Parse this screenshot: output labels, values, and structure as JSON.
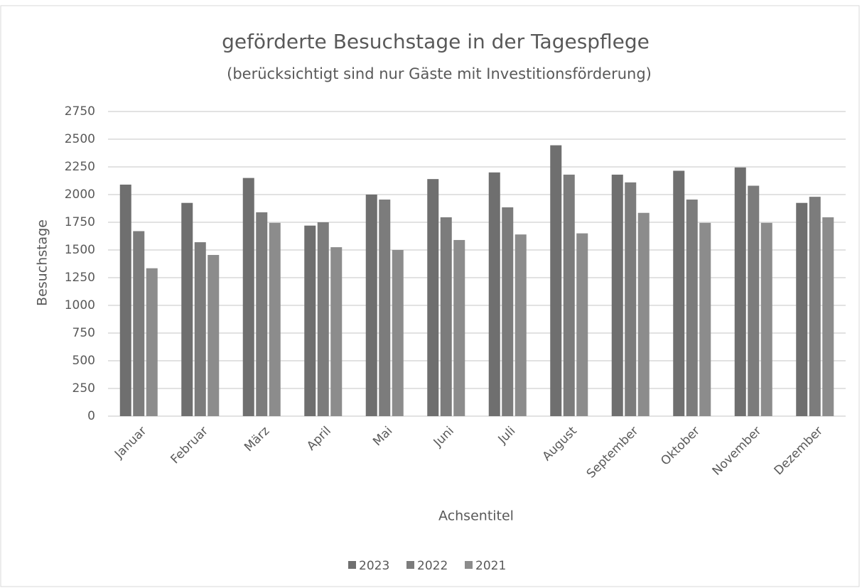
{
  "chart_data": {
    "type": "bar",
    "title": "geförderte Besuchstage in der Tagespflege",
    "subtitle": "(berücksichtigt sind nur Gäste mit Investitionsförderung)",
    "y_label": "Besuchstage",
    "x_label": "Achsentitel",
    "categories": [
      "Januar",
      "Februar",
      "März",
      "April",
      "Mai",
      "Juni",
      "Juli",
      "August",
      "September",
      "Oktober",
      "November",
      "Dezember"
    ],
    "series": [
      {
        "name": "2023",
        "color": "#6f6f6f",
        "values": [
          2090,
          1925,
          2150,
          1720,
          2000,
          2140,
          2200,
          2445,
          2180,
          2215,
          2245,
          1925
        ]
      },
      {
        "name": "2022",
        "color": "#7c7c7c",
        "values": [
          1670,
          1570,
          1840,
          1750,
          1955,
          1795,
          1885,
          2180,
          2110,
          1955,
          2080,
          1980
        ]
      },
      {
        "name": "2021",
        "color": "#8c8c8c",
        "values": [
          1335,
          1455,
          1745,
          1525,
          1500,
          1590,
          1640,
          1650,
          1835,
          1745,
          1745,
          1795
        ]
      }
    ],
    "ylim": [
      0,
      2750
    ],
    "yticks": [
      0,
      250,
      500,
      750,
      1000,
      1250,
      1500,
      1750,
      2000,
      2250,
      2500,
      2750
    ],
    "grid": true,
    "legend": "bottom"
  }
}
